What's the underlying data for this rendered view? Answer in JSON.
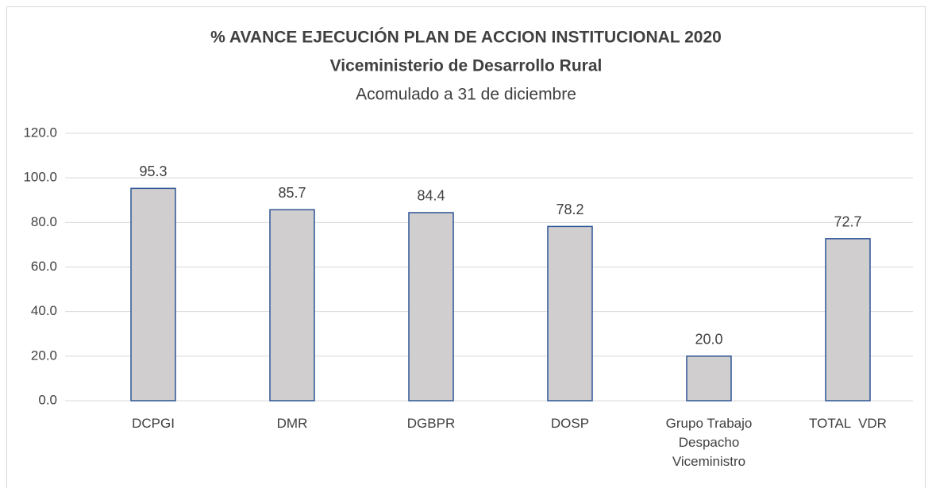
{
  "chart_data": {
    "type": "bar",
    "title": "% AVANCE EJECUCIÓN PLAN DE ACCION INSTITUCIONAL 2020",
    "subtitle": "Viceministerio de Desarrollo Rural",
    "caption": "Acomulado a 31 de diciembre",
    "categories": [
      "DCPGI",
      "DMR",
      "DGBPR",
      "DOSP",
      "Grupo Trabajo Despacho Viceministro",
      "TOTAL  VDR"
    ],
    "values": [
      95.3,
      85.7,
      84.4,
      78.2,
      20.0,
      72.7
    ],
    "value_labels": [
      "95.3",
      "85.7",
      "84.4",
      "78.2",
      "20.0",
      "72.7"
    ],
    "color": "#d0cece",
    "edge_color": "#2f5597",
    "ylim": [
      0,
      120
    ],
    "yticks": [
      {
        "value": 0,
        "label": "0.0"
      },
      {
        "value": 20,
        "label": "20.0"
      },
      {
        "value": 40,
        "label": "40.0"
      },
      {
        "value": 60,
        "label": "60.0"
      },
      {
        "value": 80,
        "label": "80.0"
      },
      {
        "value": 100,
        "label": "100.0"
      },
      {
        "value": 120,
        "label": "120.0"
      }
    ],
    "grid": true
  }
}
